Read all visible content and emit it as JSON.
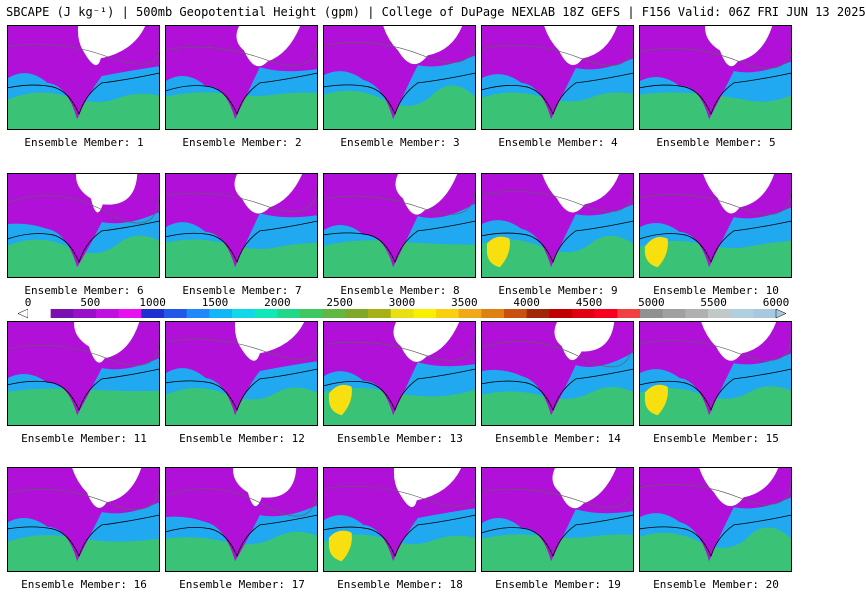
{
  "title": "SBCAPE (J kg⁻¹) | 500mb Geopotential Height (gpm) | College of DuPage NEXLAB 18Z GEFS | F156 Valid: 06Z FRI JUN 13 2025",
  "members": [
    "Ensemble Member: 1",
    "Ensemble Member: 2",
    "Ensemble Member: 3",
    "Ensemble Member: 4",
    "Ensemble Member: 5",
    "Ensemble Member: 6",
    "Ensemble Member: 7",
    "Ensemble Member: 8",
    "Ensemble Member: 9",
    "Ensemble Member: 10",
    "Ensemble Member: 11",
    "Ensemble Member: 12",
    "Ensemble Member: 13",
    "Ensemble Member: 14",
    "Ensemble Member: 15",
    "Ensemble Member: 16",
    "Ensemble Member: 17",
    "Ensemble Member: 18",
    "Ensemble Member: 19",
    "Ensemble Member: 20"
  ],
  "colorbar": {
    "ticks": [
      "0",
      "500",
      "1000",
      "1500",
      "2000",
      "2500",
      "3000",
      "3500",
      "4000",
      "4500",
      "5000",
      "5500",
      "6000"
    ],
    "min": 0,
    "max": 6000,
    "colors": [
      "#ffffff",
      "#7a10b0",
      "#9a10c8",
      "#c010e0",
      "#e810f0",
      "#2030d0",
      "#2058e8",
      "#2088f8",
      "#10b8f8",
      "#10d8e8",
      "#10e8b8",
      "#20d888",
      "#40c860",
      "#60b840",
      "#80a828",
      "#a8b018",
      "#e8e010",
      "#f8f000",
      "#f8d010",
      "#f0a818",
      "#e08010",
      "#c85010",
      "#a02808",
      "#c00000",
      "#e00010",
      "#f80020",
      "#f04040",
      "#909090",
      "#a0a0a0",
      "#b0b0b0",
      "#c0c8c8",
      "#b0d0e0",
      "#a8c8e0"
    ]
  },
  "legend_colors": {
    "no_cape": "#ffffff",
    "low_cape": "#b010d8",
    "mid_cape": "#20a8f0",
    "high_cape": "#40c860",
    "very_high_cape": "#f8e010",
    "coastline": "#000000",
    "height_contour": "#606060"
  }
}
